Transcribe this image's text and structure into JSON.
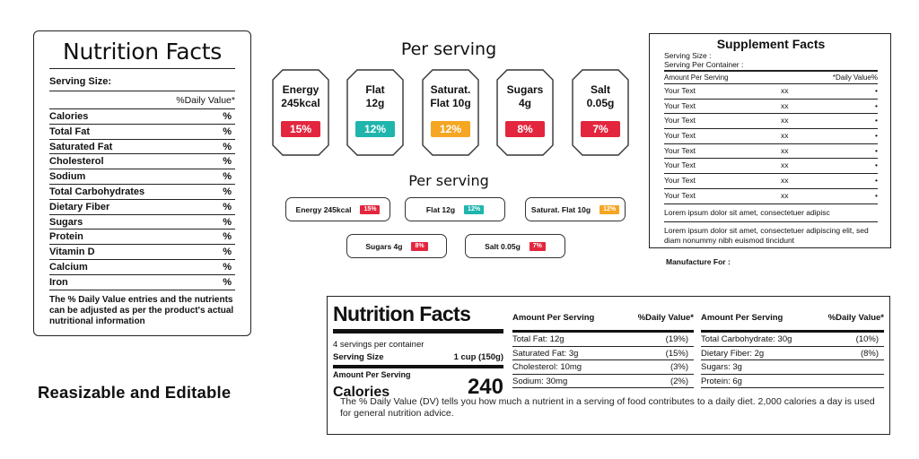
{
  "left_label": {
    "title": "Nutrition Facts",
    "serving_size": "Serving Size:",
    "daily_value_header": "%Daily Value*",
    "rows": [
      {
        "name": "Calories",
        "value": "%"
      },
      {
        "name": "Total Fat",
        "value": "%"
      },
      {
        "name": "Saturated Fat",
        "value": "%"
      },
      {
        "name": "Cholesterol",
        "value": "%"
      },
      {
        "name": "Sodium",
        "value": "%"
      },
      {
        "name": "Total Carbohydrates",
        "value": "%"
      },
      {
        "name": "Dietary Fiber",
        "value": "%"
      },
      {
        "name": "Sugars",
        "value": "%"
      },
      {
        "name": "Protein",
        "value": "%"
      },
      {
        "name": "Vitamin D",
        "value": "%"
      },
      {
        "name": "Calcium",
        "value": "%"
      },
      {
        "name": "Iron",
        "value": "%"
      }
    ],
    "note": "The % Daily Value entries and the nutrients can be adjusted as per the product's actual nutritional information"
  },
  "badges": {
    "heading": "Per serving",
    "items": [
      {
        "line1": "Energy",
        "line2": "245kcal",
        "pct": "15%",
        "color": "#e3263e"
      },
      {
        "line1": "Flat",
        "line2": "12g",
        "pct": "12%",
        "color": "#1fb5ad"
      },
      {
        "line1": "Saturat.",
        "line2": "Flat 10g",
        "pct": "12%",
        "color": "#f5a623"
      },
      {
        "line1": "Sugars",
        "line2": "4g",
        "pct": "8%",
        "color": "#e3263e"
      },
      {
        "line1": "Salt",
        "line2": "0.05g",
        "pct": "7%",
        "color": "#e3263e"
      }
    ]
  },
  "tags": {
    "heading": "Per serving",
    "items": [
      {
        "label": "Energy 245kcal",
        "pct": "15%",
        "color": "#e3263e"
      },
      {
        "label": "Flat 12g",
        "pct": "12%",
        "color": "#1fb5ad"
      },
      {
        "label": "Saturat. Flat 10g",
        "pct": "12%",
        "color": "#f5a623"
      },
      {
        "label": "Sugars 4g",
        "pct": "8%",
        "color": "#e3263e"
      },
      {
        "label": "Salt 0.05g",
        "pct": "7%",
        "color": "#e3263e"
      }
    ]
  },
  "supplement": {
    "title": "Supplement Facts",
    "serving_size": "Serving Size :",
    "servings_per_container": "Serving Per Container :",
    "amount_header": "Amount Per Serving",
    "dv_header": "*Daily Value%",
    "rows": [
      {
        "name": "Your Text",
        "amt": "xx",
        "dot": "•"
      },
      {
        "name": "Your Text",
        "amt": "xx",
        "dot": "•"
      },
      {
        "name": "Your Text",
        "amt": "xx",
        "dot": "•"
      },
      {
        "name": "Your Text",
        "amt": "xx",
        "dot": "•"
      },
      {
        "name": "Your Text",
        "amt": "xx",
        "dot": "•"
      },
      {
        "name": "Your Text",
        "amt": "xx",
        "dot": "•"
      },
      {
        "name": "Your Text",
        "amt": "xx",
        "dot": "•"
      },
      {
        "name": "Your Text",
        "amt": "xx",
        "dot": "•"
      }
    ],
    "lorem1": "Lorem ipsum dolor sit amet, consectetuer adipisc",
    "lorem2": "Lorem ipsum dolor sit amet, consectetuer adipiscing elit, sed diam nonummy nibh euismod tincidunt",
    "manufacture": "Manufacture For :"
  },
  "caption": "Reasizable and Editable",
  "bottom_label": {
    "title": "Nutrition Facts",
    "servings": "4 servings per container",
    "serving_size_label": "Serving Size",
    "serving_size_value": "1 cup (150g)",
    "amount_per_serving": "Amount Per Serving",
    "calories_label": "Calories",
    "calories_value": "240",
    "col2": {
      "head": "Amount Per Serving",
      "dv": "%Daily Value*",
      "rows": [
        {
          "name": "Total Fat: 12g",
          "value": "(19%)"
        },
        {
          "name": "Saturated Fat: 3g",
          "value": "(15%)"
        },
        {
          "name": "Cholesterol: 10mg",
          "value": "(3%)"
        },
        {
          "name": "Sodium: 30mg",
          "value": "(2%)"
        }
      ]
    },
    "col3": {
      "head": "Amount Per Serving",
      "dv": "%Daily Value*",
      "rows": [
        {
          "name": "Total Carbohydrate: 30g",
          "value": "(10%)"
        },
        {
          "name": "Dietary Fiber: 2g",
          "value": "(8%)"
        },
        {
          "name": "Sugars: 3g",
          "value": ""
        },
        {
          "name": "Protein: 6g",
          "value": ""
        }
      ]
    },
    "footnote": "The % Daily Value (DV) tells you how much a nutrient in a serving of food contributes to a daily diet. 2,000 calories a day is used for general nutrition advice."
  }
}
